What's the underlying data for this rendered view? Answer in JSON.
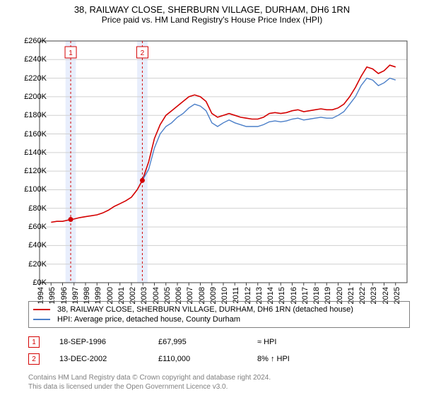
{
  "title": "38, RAILWAY CLOSE, SHERBURN VILLAGE, DURHAM, DH6 1RN",
  "subtitle": "Price paid vs. HM Land Registry's House Price Index (HPI)",
  "chart": {
    "type": "line",
    "background_color": "#ffffff",
    "grid_color": "#d0d0d0",
    "axis_color": "#404040",
    "title_fontsize": 13,
    "label_fontsize": 11,
    "x": {
      "min": 1994,
      "max": 2026,
      "ticks": [
        1994,
        1995,
        1996,
        1997,
        1998,
        1999,
        2000,
        2001,
        2002,
        2003,
        2004,
        2005,
        2006,
        2007,
        2008,
        2009,
        2010,
        2011,
        2012,
        2013,
        2014,
        2015,
        2016,
        2017,
        2018,
        2019,
        2020,
        2021,
        2022,
        2023,
        2024,
        2025
      ]
    },
    "y": {
      "min": 0,
      "max": 260000,
      "tick_step": 20000,
      "tick_format": "£{v/1000}K"
    },
    "series": [
      {
        "name": "38, RAILWAY CLOSE, SHERBURN VILLAGE, DURHAM, DH6 1RN (detached house)",
        "color": "#d40000",
        "line_width": 1.6,
        "points": [
          [
            1995.0,
            65000
          ],
          [
            1995.5,
            66000
          ],
          [
            1996.0,
            66000
          ],
          [
            1996.7,
            68000
          ],
          [
            1997.0,
            68500
          ],
          [
            1997.5,
            70000
          ],
          [
            1998.0,
            71000
          ],
          [
            1998.5,
            72000
          ],
          [
            1999.0,
            73000
          ],
          [
            1999.5,
            75000
          ],
          [
            2000.0,
            78000
          ],
          [
            2000.5,
            82000
          ],
          [
            2001.0,
            85000
          ],
          [
            2001.5,
            88000
          ],
          [
            2002.0,
            92000
          ],
          [
            2002.5,
            100000
          ],
          [
            2002.95,
            110000
          ],
          [
            2003.5,
            130000
          ],
          [
            2004.0,
            155000
          ],
          [
            2004.5,
            170000
          ],
          [
            2005.0,
            180000
          ],
          [
            2005.5,
            185000
          ],
          [
            2006.0,
            190000
          ],
          [
            2006.5,
            195000
          ],
          [
            2007.0,
            200000
          ],
          [
            2007.5,
            202000
          ],
          [
            2008.0,
            200000
          ],
          [
            2008.5,
            195000
          ],
          [
            2009.0,
            182000
          ],
          [
            2009.5,
            178000
          ],
          [
            2010.0,
            180000
          ],
          [
            2010.5,
            182000
          ],
          [
            2011.0,
            180000
          ],
          [
            2011.5,
            178000
          ],
          [
            2012.0,
            177000
          ],
          [
            2012.5,
            176000
          ],
          [
            2013.0,
            176000
          ],
          [
            2013.5,
            178000
          ],
          [
            2014.0,
            182000
          ],
          [
            2014.5,
            183000
          ],
          [
            2015.0,
            182000
          ],
          [
            2015.5,
            183000
          ],
          [
            2016.0,
            185000
          ],
          [
            2016.5,
            186000
          ],
          [
            2017.0,
            184000
          ],
          [
            2017.5,
            185000
          ],
          [
            2018.0,
            186000
          ],
          [
            2018.5,
            187000
          ],
          [
            2019.0,
            186000
          ],
          [
            2019.5,
            186000
          ],
          [
            2020.0,
            188000
          ],
          [
            2020.5,
            192000
          ],
          [
            2021.0,
            200000
          ],
          [
            2021.5,
            210000
          ],
          [
            2022.0,
            222000
          ],
          [
            2022.5,
            232000
          ],
          [
            2023.0,
            230000
          ],
          [
            2023.5,
            225000
          ],
          [
            2024.0,
            228000
          ],
          [
            2024.5,
            234000
          ],
          [
            2025.0,
            232000
          ]
        ]
      },
      {
        "name": "HPI: Average price, detached house, County Durham",
        "color": "#4a7ec8",
        "line_width": 1.4,
        "points": [
          [
            2002.95,
            110000
          ],
          [
            2003.5,
            122000
          ],
          [
            2004.0,
            145000
          ],
          [
            2004.5,
            160000
          ],
          [
            2005.0,
            168000
          ],
          [
            2005.5,
            172000
          ],
          [
            2006.0,
            178000
          ],
          [
            2006.5,
            182000
          ],
          [
            2007.0,
            188000
          ],
          [
            2007.5,
            192000
          ],
          [
            2008.0,
            190000
          ],
          [
            2008.5,
            185000
          ],
          [
            2009.0,
            172000
          ],
          [
            2009.5,
            168000
          ],
          [
            2010.0,
            172000
          ],
          [
            2010.5,
            175000
          ],
          [
            2011.0,
            172000
          ],
          [
            2011.5,
            170000
          ],
          [
            2012.0,
            168000
          ],
          [
            2012.5,
            168000
          ],
          [
            2013.0,
            168000
          ],
          [
            2013.5,
            170000
          ],
          [
            2014.0,
            173000
          ],
          [
            2014.5,
            174000
          ],
          [
            2015.0,
            173000
          ],
          [
            2015.5,
            174000
          ],
          [
            2016.0,
            176000
          ],
          [
            2016.5,
            177000
          ],
          [
            2017.0,
            175000
          ],
          [
            2017.5,
            176000
          ],
          [
            2018.0,
            177000
          ],
          [
            2018.5,
            178000
          ],
          [
            2019.0,
            177000
          ],
          [
            2019.5,
            177000
          ],
          [
            2020.0,
            180000
          ],
          [
            2020.5,
            184000
          ],
          [
            2021.0,
            192000
          ],
          [
            2021.5,
            200000
          ],
          [
            2022.0,
            212000
          ],
          [
            2022.5,
            220000
          ],
          [
            2023.0,
            218000
          ],
          [
            2023.5,
            212000
          ],
          [
            2024.0,
            215000
          ],
          [
            2024.5,
            220000
          ],
          [
            2025.0,
            218000
          ]
        ]
      }
    ],
    "sale_markers": [
      {
        "n": 1,
        "x": 1996.71,
        "y": 67995,
        "color": "#d40000",
        "band_color": "#e8eefc"
      },
      {
        "n": 2,
        "x": 2002.95,
        "y": 110000,
        "color": "#d40000",
        "band_color": "#e8eefc"
      }
    ],
    "marker_label_box": {
      "border": "#d40000",
      "text": "#404040",
      "fontsize": 10
    }
  },
  "legend": {
    "swatch_width": 24,
    "border_color": "#808080",
    "fontsize": 11
  },
  "sales_table": {
    "rows": [
      {
        "n": 1,
        "date": "18-SEP-1996",
        "price": "£67,995",
        "hpi_delta": "≈ HPI",
        "marker_color": "#d40000"
      },
      {
        "n": 2,
        "date": "13-DEC-2002",
        "price": "£110,000",
        "hpi_delta": "8% ↑ HPI",
        "marker_color": "#d40000"
      }
    ]
  },
  "attribution": {
    "line1": "Contains HM Land Registry data © Crown copyright and database right 2024.",
    "line2": "This data is licensed under the Open Government Licence v3.0.",
    "color": "#808080"
  }
}
